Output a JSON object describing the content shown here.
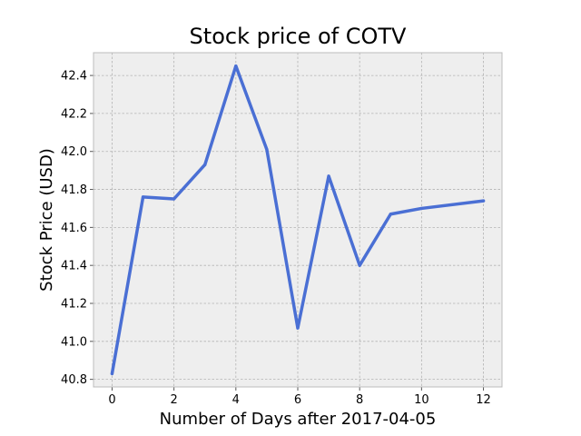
{
  "chart_data": {
    "type": "line",
    "title": "Stock price of COTV",
    "xlabel": "Number of Days after 2017-04-05",
    "ylabel": "Stock Price (USD)",
    "x": [
      0,
      1,
      2,
      3,
      4,
      5,
      6,
      7,
      8,
      9,
      10,
      12
    ],
    "series": [
      {
        "values": [
          40.83,
          41.76,
          41.75,
          41.93,
          42.45,
          42.01,
          41.07,
          41.87,
          41.4,
          41.67,
          41.7,
          41.74
        ]
      }
    ],
    "xlim": [
      -0.6,
      12.6
    ],
    "ylim": [
      40.76,
      42.52
    ],
    "xticks": [
      0,
      2,
      4,
      6,
      8,
      10,
      12
    ],
    "xtick_labels": [
      "0",
      "2",
      "4",
      "6",
      "8",
      "10",
      "12"
    ],
    "yticks": [
      40.8,
      41.0,
      41.2,
      41.4,
      41.6,
      41.8,
      42.0,
      42.2,
      42.4
    ],
    "ytick_labels": [
      "40.8",
      "41.0",
      "41.2",
      "41.4",
      "41.6",
      "41.8",
      "42.0",
      "42.2",
      "42.4"
    ],
    "grid": true,
    "legend": "none",
    "colors": {
      "line": "#4a6fd4",
      "plot_background": "#eeeeee",
      "grid": "#b3b3b3",
      "spine": "#bcbcbc"
    }
  }
}
